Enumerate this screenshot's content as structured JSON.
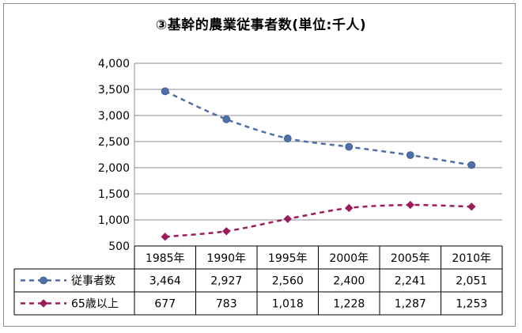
{
  "chart_data": {
    "type": "line",
    "title": "③基幹的農業従事者数(単位:千人)",
    "categories": [
      "1985年",
      "1990年",
      "1995年",
      "2000年",
      "2005年",
      "2010年"
    ],
    "ylim": [
      500,
      4000
    ],
    "yticks": [
      "500",
      "1,000",
      "1,500",
      "2,000",
      "2,500",
      "3,000",
      "3,500",
      "4,000"
    ],
    "grid": true,
    "legend": "data-table-rows",
    "series": [
      {
        "name": "従事者数",
        "values": [
          3464,
          2927,
          2560,
          2400,
          2241,
          2051
        ],
        "labels": [
          "3,464",
          "2,927",
          "2,560",
          "2,400",
          "2,241",
          "2,051"
        ],
        "color": "#4F6FA8",
        "marker": "circle",
        "line": "dashed"
      },
      {
        "name": "65歳以上",
        "values": [
          677,
          783,
          1018,
          1228,
          1287,
          1253
        ],
        "labels": [
          "677",
          "783",
          "1,018",
          "1,228",
          "1,287",
          "1,253"
        ],
        "color": "#9B1C5A",
        "marker": "diamond",
        "line": "dashed"
      }
    ]
  }
}
